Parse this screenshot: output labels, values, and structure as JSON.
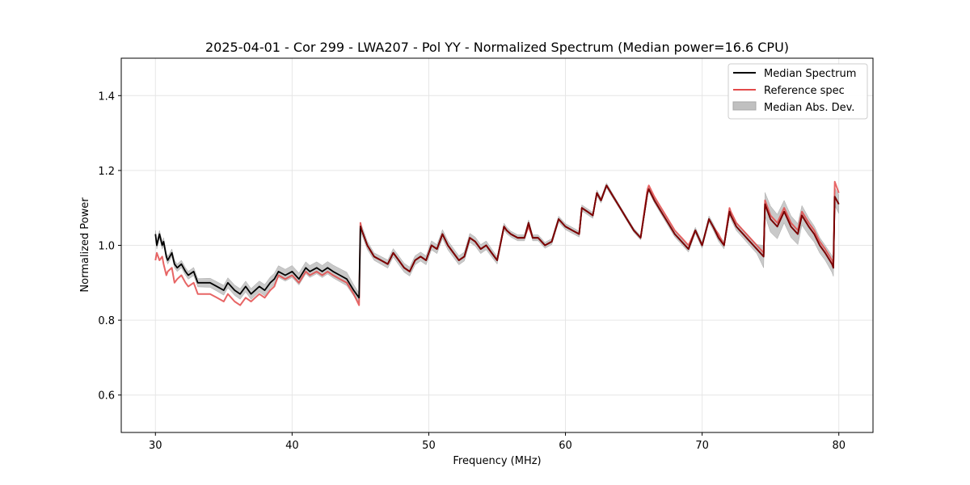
{
  "chart_data": {
    "type": "line",
    "title": "2025-04-01 - Cor 299 - LWA207 - Pol YY - Normalized Spectrum (Median power=16.6 CPU)",
    "xlabel": "Frequency (MHz)",
    "ylabel": "Normalized Power",
    "xlim": [
      27.5,
      82.5
    ],
    "ylim": [
      0.5,
      1.5
    ],
    "xticks": [
      30,
      40,
      50,
      60,
      70,
      80
    ],
    "xtick_labels": [
      "30",
      "40",
      "50",
      "60",
      "70",
      "80"
    ],
    "yticks": [
      0.6,
      0.8,
      1.0,
      1.2,
      1.4
    ],
    "ytick_labels": [
      "0.6",
      "0.8",
      "1.0",
      "1.2",
      "1.4"
    ],
    "grid": true,
    "legend_position": "top-right",
    "colors": {
      "median": "#000000",
      "reference": "#e34a4a",
      "overlap": "#7f0000",
      "band": "#c0c0c0"
    },
    "series": [
      {
        "name": "Median Spectrum",
        "x": [
          30.0,
          30.1,
          30.3,
          30.5,
          30.6,
          30.8,
          30.9,
          31.2,
          31.4,
          31.6,
          31.9,
          32.2,
          32.4,
          32.8,
          33.1,
          33.5,
          34.0,
          34.5,
          35.0,
          35.3,
          35.8,
          36.2,
          36.6,
          37.0,
          37.3,
          37.6,
          38.0,
          38.4,
          38.7,
          39.0,
          39.5,
          40.0,
          40.5,
          41.0,
          41.3,
          41.8,
          42.2,
          42.6,
          43.0,
          43.5,
          44.0,
          44.5,
          44.9,
          45.0,
          45.1,
          45.5,
          46.0,
          46.5,
          47.0,
          47.4,
          47.8,
          48.2,
          48.6,
          49.0,
          49.4,
          49.8,
          50.2,
          50.6,
          51.0,
          51.4,
          51.8,
          52.2,
          52.6,
          53.0,
          53.4,
          53.8,
          54.2,
          54.6,
          55.0,
          55.5,
          55.7,
          56.0,
          56.5,
          57.0,
          57.3,
          57.6,
          58.0,
          58.5,
          59.0,
          59.5,
          60.0,
          60.5,
          61.0,
          61.2,
          61.6,
          62.0,
          62.3,
          62.6,
          63.0,
          63.5,
          64.0,
          64.5,
          65.0,
          65.5,
          66.0,
          66.1,
          66.5,
          67.0,
          67.5,
          68.0,
          68.5,
          69.0,
          69.5,
          70.0,
          70.5,
          70.8,
          71.2,
          71.6,
          72.0,
          72.1,
          72.5,
          73.0,
          73.5,
          74.0,
          74.5,
          74.6,
          75.0,
          75.5,
          76.0,
          76.5,
          77.0,
          77.3,
          77.8,
          78.2,
          78.6,
          79.0,
          79.5,
          79.6,
          79.7,
          80.0
        ],
        "y": [
          1.03,
          1.0,
          1.03,
          1.0,
          1.01,
          0.97,
          0.96,
          0.98,
          0.95,
          0.94,
          0.95,
          0.93,
          0.92,
          0.93,
          0.9,
          0.9,
          0.9,
          0.89,
          0.88,
          0.9,
          0.88,
          0.87,
          0.89,
          0.87,
          0.88,
          0.89,
          0.88,
          0.9,
          0.91,
          0.93,
          0.92,
          0.93,
          0.91,
          0.94,
          0.93,
          0.94,
          0.93,
          0.94,
          0.93,
          0.92,
          0.91,
          0.88,
          0.86,
          1.05,
          1.04,
          1.0,
          0.97,
          0.96,
          0.95,
          0.98,
          0.96,
          0.94,
          0.93,
          0.96,
          0.97,
          0.96,
          1.0,
          0.99,
          1.03,
          1.0,
          0.98,
          0.96,
          0.97,
          1.02,
          1.01,
          0.99,
          1.0,
          0.98,
          0.96,
          1.05,
          1.04,
          1.03,
          1.02,
          1.02,
          1.06,
          1.02,
          1.02,
          1.0,
          1.01,
          1.07,
          1.05,
          1.04,
          1.03,
          1.1,
          1.09,
          1.08,
          1.14,
          1.12,
          1.16,
          1.13,
          1.1,
          1.07,
          1.04,
          1.02,
          1.14,
          1.15,
          1.12,
          1.09,
          1.06,
          1.03,
          1.01,
          0.99,
          1.04,
          1.0,
          1.07,
          1.05,
          1.02,
          1.0,
          1.09,
          1.08,
          1.05,
          1.03,
          1.01,
          0.99,
          0.97,
          1.11,
          1.07,
          1.05,
          1.09,
          1.05,
          1.03,
          1.08,
          1.05,
          1.03,
          1.0,
          0.98,
          0.95,
          0.94,
          1.13,
          1.11
        ]
      },
      {
        "name": "Reference spec",
        "x": [
          30.0,
          30.1,
          30.3,
          30.5,
          30.6,
          30.8,
          30.9,
          31.2,
          31.4,
          31.6,
          31.9,
          32.2,
          32.4,
          32.8,
          33.1,
          33.5,
          34.0,
          34.5,
          35.0,
          35.3,
          35.8,
          36.2,
          36.6,
          37.0,
          37.3,
          37.6,
          38.0,
          38.4,
          38.7,
          39.0,
          39.5,
          40.0,
          40.5,
          41.0,
          41.3,
          41.8,
          42.2,
          42.6,
          43.0,
          43.5,
          44.0,
          44.5,
          44.9,
          45.0,
          45.1,
          45.5,
          46.0,
          46.5,
          47.0,
          47.4,
          47.8,
          48.2,
          48.6,
          49.0,
          49.4,
          49.8,
          50.2,
          50.6,
          51.0,
          51.4,
          51.8,
          52.2,
          52.6,
          53.0,
          53.4,
          53.8,
          54.2,
          54.6,
          55.0,
          55.5,
          55.7,
          56.0,
          56.5,
          57.0,
          57.3,
          57.6,
          58.0,
          58.5,
          59.0,
          59.5,
          60.0,
          60.5,
          61.0,
          61.2,
          61.6,
          62.0,
          62.3,
          62.6,
          63.0,
          63.5,
          64.0,
          64.5,
          65.0,
          65.5,
          66.0,
          66.1,
          66.5,
          67.0,
          67.5,
          68.0,
          68.5,
          69.0,
          69.5,
          70.0,
          70.5,
          70.8,
          71.2,
          71.6,
          72.0,
          72.1,
          72.5,
          73.0,
          73.5,
          74.0,
          74.5,
          74.6,
          75.0,
          75.5,
          76.0,
          76.5,
          77.0,
          77.3,
          77.8,
          78.2,
          78.6,
          79.0,
          79.5,
          79.6,
          79.7,
          80.0
        ],
        "y": [
          0.96,
          0.98,
          0.96,
          0.97,
          0.95,
          0.92,
          0.93,
          0.94,
          0.9,
          0.91,
          0.92,
          0.9,
          0.89,
          0.9,
          0.87,
          0.87,
          0.87,
          0.86,
          0.85,
          0.87,
          0.85,
          0.84,
          0.86,
          0.85,
          0.86,
          0.87,
          0.86,
          0.88,
          0.89,
          0.92,
          0.91,
          0.92,
          0.9,
          0.93,
          0.92,
          0.93,
          0.92,
          0.93,
          0.92,
          0.91,
          0.9,
          0.87,
          0.84,
          1.06,
          1.04,
          1.0,
          0.97,
          0.96,
          0.95,
          0.98,
          0.96,
          0.94,
          0.93,
          0.96,
          0.97,
          0.96,
          1.0,
          0.99,
          1.03,
          1.0,
          0.98,
          0.96,
          0.97,
          1.02,
          1.01,
          0.99,
          1.0,
          0.98,
          0.96,
          1.05,
          1.04,
          1.03,
          1.02,
          1.02,
          1.05,
          1.02,
          1.02,
          1.0,
          1.01,
          1.07,
          1.05,
          1.04,
          1.03,
          1.1,
          1.09,
          1.08,
          1.14,
          1.12,
          1.16,
          1.13,
          1.1,
          1.07,
          1.04,
          1.02,
          1.15,
          1.16,
          1.13,
          1.1,
          1.07,
          1.04,
          1.02,
          1.0,
          1.04,
          1.0,
          1.07,
          1.05,
          1.03,
          1.0,
          1.1,
          1.09,
          1.06,
          1.04,
          1.02,
          1.0,
          0.98,
          1.12,
          1.08,
          1.06,
          1.1,
          1.06,
          1.04,
          1.09,
          1.06,
          1.04,
          1.01,
          0.99,
          0.96,
          0.95,
          1.17,
          1.14
        ]
      }
    ],
    "band": {
      "name": "Median Abs. Dev.",
      "x": [
        30.0,
        32.0,
        34.0,
        36.0,
        38.0,
        40.0,
        42.0,
        44.0,
        45.0,
        46.0,
        48.0,
        50.0,
        52.0,
        54.0,
        56.0,
        58.0,
        60.0,
        62.0,
        64.0,
        66.0,
        68.0,
        70.0,
        72.0,
        74.0,
        74.5,
        75.0,
        76.0,
        77.0,
        78.0,
        79.0,
        80.0
      ],
      "halfwidth": [
        0.01,
        0.01,
        0.012,
        0.014,
        0.015,
        0.016,
        0.016,
        0.018,
        0.012,
        0.01,
        0.012,
        0.012,
        0.012,
        0.012,
        0.008,
        0.008,
        0.008,
        0.008,
        0.005,
        0.006,
        0.008,
        0.008,
        0.01,
        0.012,
        0.03,
        0.035,
        0.03,
        0.028,
        0.022,
        0.02,
        0.025
      ]
    },
    "legend": [
      {
        "label": "Median Spectrum",
        "kind": "line",
        "color": "#000000"
      },
      {
        "label": "Reference spec",
        "kind": "line",
        "color": "#e34a4a"
      },
      {
        "label": "Median Abs. Dev.",
        "kind": "patch",
        "color": "#c0c0c0"
      }
    ]
  }
}
